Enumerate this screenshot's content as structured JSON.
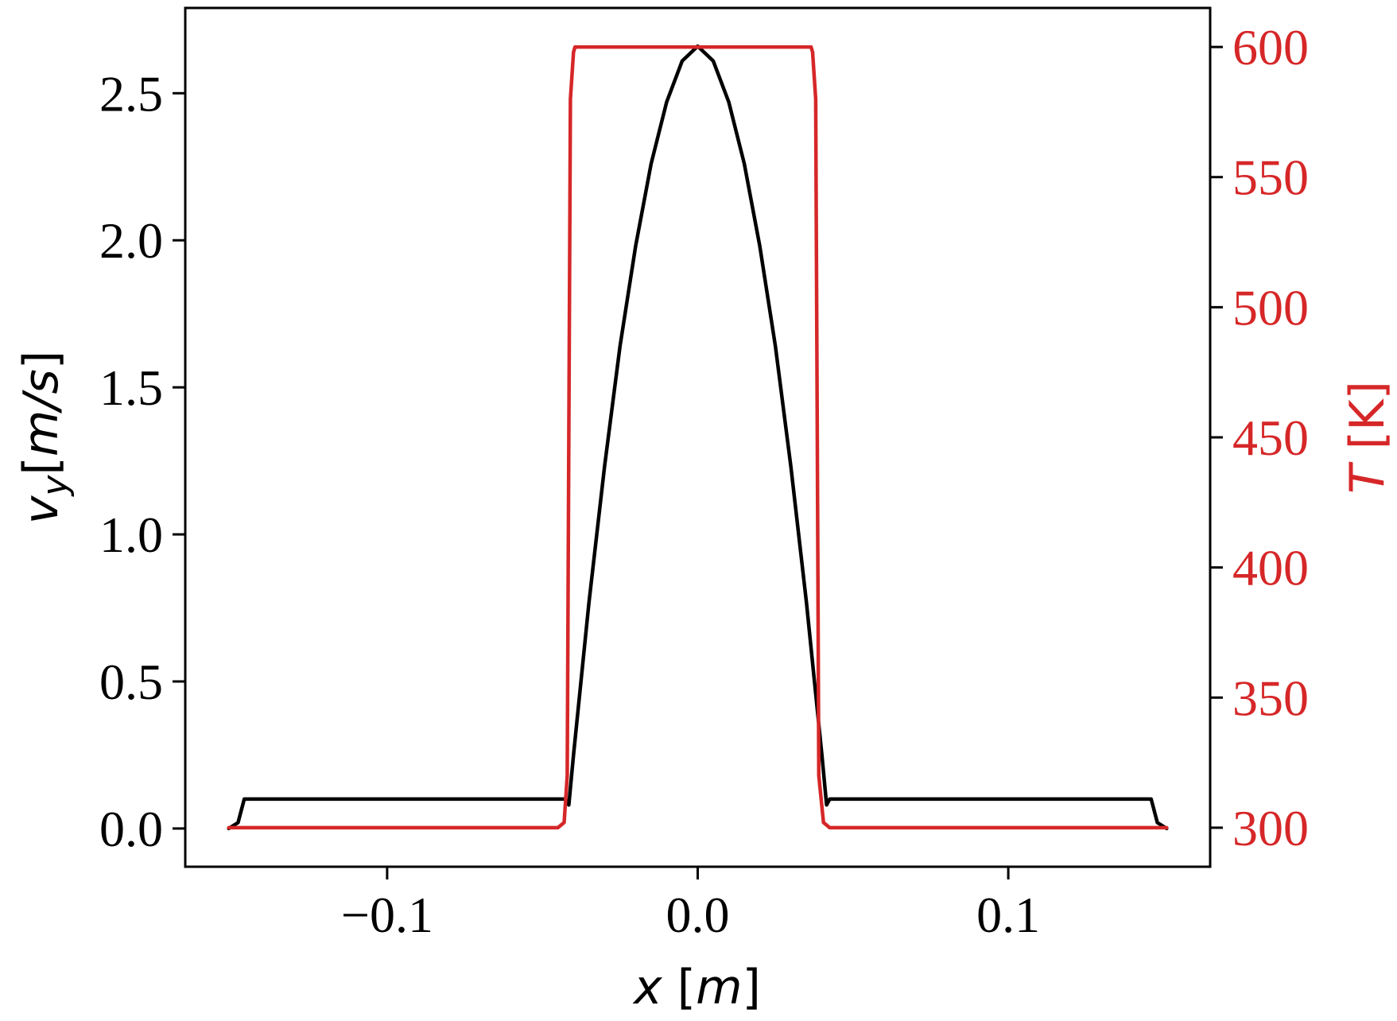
{
  "chart_data": {
    "type": "line",
    "title": "",
    "xlabel": "x [m]",
    "ylabel_left": "v_y[m/s]",
    "ylabel_right": "T [K]",
    "xlim": [
      -0.165,
      0.165
    ],
    "ylim_left": [
      -0.13,
      2.79
    ],
    "ylim_right": [
      285,
      615
    ],
    "x_ticks": [
      -0.1,
      0.0,
      0.1
    ],
    "x_tick_labels": [
      "−0.1",
      "0.0",
      "0.1"
    ],
    "y_left_ticks": [
      0.0,
      0.5,
      1.0,
      1.5,
      2.0,
      2.5
    ],
    "y_left_tick_labels": [
      "0.0",
      "0.5",
      "1.0",
      "1.5",
      "2.0",
      "2.5"
    ],
    "y_right_ticks": [
      300,
      350,
      400,
      450,
      500,
      550,
      600
    ],
    "y_right_tick_labels": [
      "300",
      "350",
      "400",
      "450",
      "500",
      "550",
      "600"
    ],
    "grid": false,
    "legend": "none",
    "colors": {
      "left_axis": "#000000",
      "right_axis": "#d62728"
    },
    "series": [
      {
        "axis": "left",
        "color": "#000000",
        "x": [
          -0.151,
          -0.148,
          -0.146,
          -0.1,
          -0.05,
          -0.0425,
          -0.0415,
          -0.04,
          -0.035,
          -0.03,
          -0.025,
          -0.02,
          -0.015,
          -0.01,
          -0.005,
          0.0,
          0.005,
          0.01,
          0.015,
          0.02,
          0.025,
          0.03,
          0.035,
          0.04,
          0.0415,
          0.0425,
          0.05,
          0.1,
          0.146,
          0.148,
          0.151
        ],
        "y": [
          0.0,
          0.02,
          0.1,
          0.1,
          0.1,
          0.1,
          0.08,
          0.25,
          0.77,
          1.23,
          1.64,
          1.98,
          2.26,
          2.47,
          2.61,
          2.66,
          2.61,
          2.47,
          2.26,
          1.98,
          1.64,
          1.23,
          0.77,
          0.25,
          0.08,
          0.1,
          0.1,
          0.1,
          0.1,
          0.02,
          0.0
        ]
      },
      {
        "axis": "right",
        "color": "#d62728",
        "x": [
          -0.151,
          -0.045,
          -0.043,
          -0.042,
          -0.0415,
          -0.041,
          -0.04,
          -0.0395,
          0.0,
          0.0365,
          0.037,
          0.038,
          0.0385,
          0.039,
          0.0405,
          0.0425,
          0.151
        ],
        "y": [
          300,
          300,
          302,
          320,
          450,
          580,
          598,
          600,
          600,
          600,
          598,
          580,
          450,
          320,
          302,
          300,
          300
        ]
      }
    ]
  }
}
